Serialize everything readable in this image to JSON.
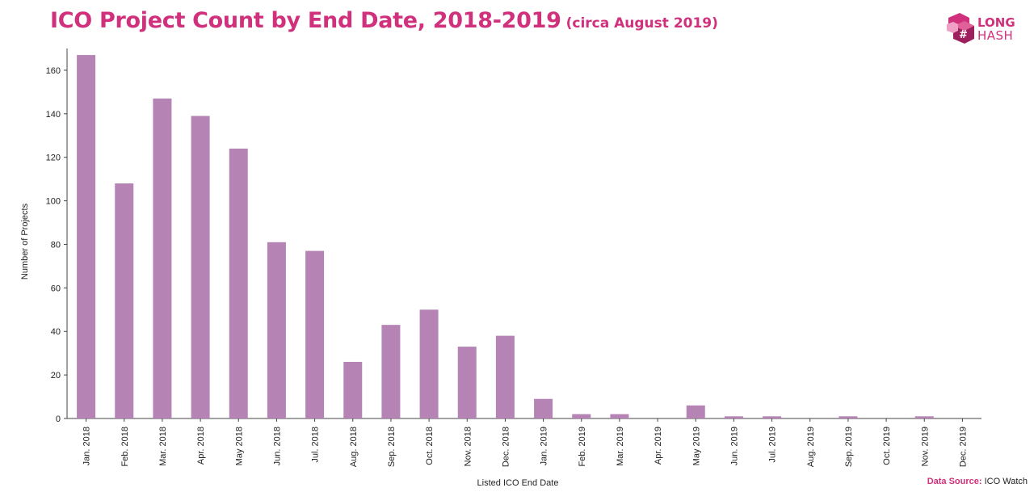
{
  "header": {
    "title": "ICO Project Count by End Date, 2018-2019",
    "subtitle": "(circa August 2019)"
  },
  "logo": {
    "line1": "LONG",
    "line2": "HASH"
  },
  "source": {
    "label": "Data Source:",
    "value": "ICO Watch"
  },
  "colors": {
    "accent": "#d0307c",
    "bar": "#b584b5",
    "text": "#222222",
    "axis": "#444444"
  },
  "chart_data": {
    "type": "bar",
    "title": "ICO Project Count by End Date, 2018-2019",
    "subtitle": "(circa August 2019)",
    "xlabel": "Listed ICO End Date",
    "ylabel": "Number of Projects",
    "ylim": [
      0,
      170
    ],
    "yticks": [
      0,
      20,
      40,
      60,
      80,
      100,
      120,
      140,
      160
    ],
    "grid": false,
    "categories": [
      "Jan. 2018",
      "Feb. 2018",
      "Mar. 2018",
      "Apr. 2018",
      "May 2018",
      "Jun. 2018",
      "Jul. 2018",
      "Aug. 2018",
      "Sep. 2018",
      "Oct. 2018",
      "Nov. 2018",
      "Dec. 2018",
      "Jan. 2019",
      "Feb. 2019",
      "Mar. 2019",
      "Apr. 2019",
      "May 2019",
      "Jun. 2019",
      "Jul. 2019",
      "Aug. 2019",
      "Sep. 2019",
      "Oct. 2019",
      "Nov. 2019",
      "Dec. 2019"
    ],
    "values": [
      167,
      108,
      147,
      139,
      124,
      81,
      77,
      26,
      43,
      50,
      33,
      38,
      9,
      2,
      2,
      0,
      6,
      1,
      1,
      0,
      1,
      0,
      1,
      0
    ]
  }
}
